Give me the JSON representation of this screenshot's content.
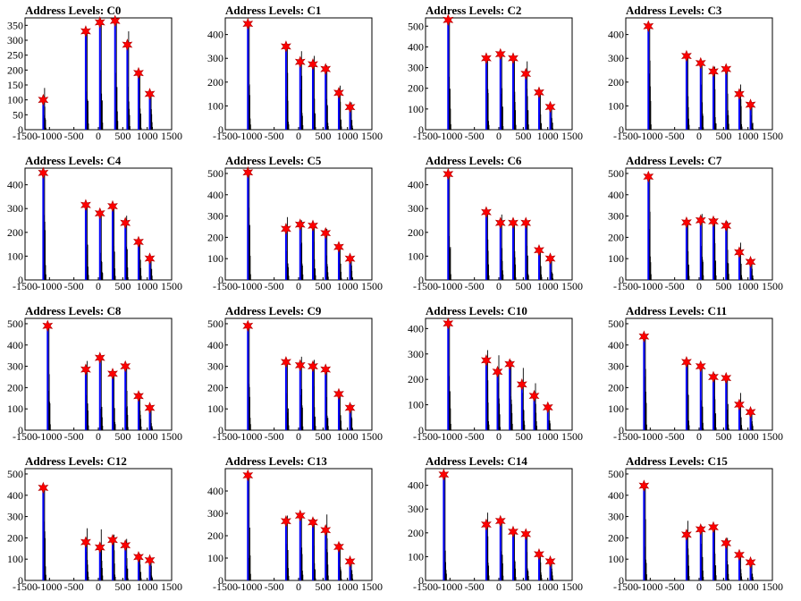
{
  "style": {
    "histogram_color": "#000000",
    "level_line_color": "#0000ff",
    "marker_color": "#ff0000",
    "marker_stroke": "#b00000"
  },
  "chart_data": [
    {
      "type": "bar",
      "title": "Address Levels: C0",
      "xlim": [
        -1500,
        1500
      ],
      "ylim": [
        0,
        375
      ],
      "yticks": [
        0,
        50,
        100,
        150,
        200,
        250,
        300,
        350
      ],
      "xticks": [
        -1500,
        -1000,
        -500,
        0,
        500,
        1000,
        1500
      ],
      "levels": [
        -1100,
        -230,
        60,
        370,
        620,
        850,
        1080
      ],
      "peaks": [
        100,
        330,
        360,
        365,
        285,
        190,
        120
      ],
      "hist_peaks": [
        140,
        330,
        360,
        365,
        330,
        190,
        120
      ]
    },
    {
      "type": "bar",
      "title": "Address Levels: C1",
      "xlim": [
        -1500,
        1500
      ],
      "ylim": [
        0,
        470
      ],
      "yticks": [
        0,
        100,
        200,
        300,
        400
      ],
      "xticks": [
        -1500,
        -1000,
        -500,
        0,
        500,
        1000,
        1500
      ],
      "levels": [
        -1010,
        -230,
        60,
        320,
        580,
        850,
        1080
      ],
      "peaks": [
        445,
        350,
        285,
        275,
        255,
        155,
        95
      ],
      "hist_peaks": [
        445,
        350,
        330,
        310,
        270,
        185,
        115
      ]
    },
    {
      "type": "bar",
      "title": "Address Levels: C2",
      "xlim": [
        -1500,
        1500
      ],
      "ylim": [
        0,
        540
      ],
      "yticks": [
        0,
        100,
        200,
        300,
        400,
        500
      ],
      "xticks": [
        -1500,
        -1000,
        -500,
        0,
        500,
        1000,
        1500
      ],
      "levels": [
        -1010,
        -230,
        60,
        320,
        580,
        850,
        1080
      ],
      "peaks": [
        530,
        345,
        365,
        345,
        270,
        180,
        110
      ],
      "hist_peaks": [
        530,
        345,
        365,
        345,
        330,
        180,
        110
      ]
    },
    {
      "type": "bar",
      "title": "Address Levels: C3",
      "xlim": [
        -1500,
        1500
      ],
      "ylim": [
        0,
        470
      ],
      "yticks": [
        0,
        100,
        200,
        300,
        400
      ],
      "xticks": [
        -1500,
        -1000,
        -500,
        0,
        500,
        1000,
        1500
      ],
      "levels": [
        -1010,
        -230,
        60,
        320,
        580,
        850,
        1080
      ],
      "peaks": [
        435,
        310,
        280,
        245,
        255,
        150,
        105
      ],
      "hist_peaks": [
        435,
        310,
        280,
        265,
        255,
        190,
        115
      ]
    },
    {
      "type": "bar",
      "title": "Address Levels: C4",
      "xlim": [
        -1500,
        1500
      ],
      "ylim": [
        0,
        470
      ],
      "yticks": [
        0,
        100,
        200,
        300,
        400
      ],
      "xticks": [
        -1500,
        -1000,
        -500,
        0,
        500,
        1000,
        1500
      ],
      "levels": [
        -1100,
        -230,
        60,
        320,
        580,
        850,
        1080
      ],
      "peaks": [
        450,
        315,
        280,
        310,
        240,
        160,
        90
      ],
      "hist_peaks": [
        450,
        315,
        290,
        310,
        270,
        170,
        95
      ]
    },
    {
      "type": "bar",
      "title": "Address Levels: C5",
      "xlim": [
        -1500,
        1500
      ],
      "ylim": [
        0,
        525
      ],
      "yticks": [
        0,
        100,
        200,
        300,
        400,
        500
      ],
      "xticks": [
        -1500,
        -1000,
        -500,
        0,
        500,
        1000,
        1500
      ],
      "levels": [
        -1010,
        -230,
        60,
        320,
        580,
        850,
        1080
      ],
      "peaks": [
        505,
        240,
        260,
        255,
        220,
        155,
        100
      ],
      "hist_peaks": [
        505,
        295,
        280,
        260,
        240,
        160,
        105
      ]
    },
    {
      "type": "bar",
      "title": "Address Levels: C6",
      "xlim": [
        -1500,
        1500
      ],
      "ylim": [
        0,
        470
      ],
      "yticks": [
        0,
        100,
        200,
        300,
        400
      ],
      "xticks": [
        -1500,
        -1000,
        -500,
        0,
        500,
        1000,
        1500
      ],
      "levels": [
        -1010,
        -230,
        60,
        320,
        580,
        850,
        1080
      ],
      "peaks": [
        445,
        285,
        240,
        240,
        240,
        125,
        90
      ],
      "hist_peaks": [
        445,
        285,
        275,
        250,
        240,
        125,
        90
      ]
    },
    {
      "type": "bar",
      "title": "Address Levels: C7",
      "xlim": [
        -1500,
        1500
      ],
      "ylim": [
        0,
        525
      ],
      "yticks": [
        0,
        100,
        200,
        300,
        400,
        500
      ],
      "xticks": [
        -1500,
        -1000,
        -500,
        0,
        500,
        1000,
        1500
      ],
      "levels": [
        -1010,
        -230,
        60,
        320,
        580,
        850,
        1080
      ],
      "peaks": [
        485,
        270,
        280,
        275,
        255,
        130,
        85
      ],
      "hist_peaks": [
        485,
        280,
        310,
        290,
        275,
        175,
        90
      ]
    },
    {
      "type": "bar",
      "title": "Address Levels: C8",
      "xlim": [
        -1500,
        1500
      ],
      "ylim": [
        0,
        525
      ],
      "yticks": [
        0,
        100,
        200,
        300,
        400,
        500
      ],
      "xticks": [
        -1500,
        -1000,
        -500,
        0,
        500,
        1000,
        1500
      ],
      "levels": [
        -1010,
        -230,
        60,
        320,
        580,
        850,
        1080
      ],
      "peaks": [
        490,
        285,
        340,
        265,
        300,
        160,
        105
      ],
      "hist_peaks": [
        490,
        325,
        340,
        275,
        300,
        175,
        110
      ]
    },
    {
      "type": "bar",
      "title": "Address Levels: C9",
      "xlim": [
        -1500,
        1500
      ],
      "ylim": [
        0,
        525
      ],
      "yticks": [
        0,
        100,
        200,
        300,
        400,
        500
      ],
      "xticks": [
        -1500,
        -1000,
        -500,
        0,
        500,
        1000,
        1500
      ],
      "levels": [
        -1010,
        -230,
        60,
        320,
        580,
        850,
        1080
      ],
      "peaks": [
        490,
        320,
        305,
        300,
        285,
        170,
        105
      ],
      "hist_peaks": [
        490,
        330,
        345,
        330,
        295,
        180,
        120
      ]
    },
    {
      "type": "bar",
      "title": "Address Levels: C10",
      "xlim": [
        -1500,
        1500
      ],
      "ylim": [
        0,
        440
      ],
      "yticks": [
        0,
        100,
        200,
        300,
        400
      ],
      "xticks": [
        -1500,
        -1000,
        -500,
        0,
        500,
        1000,
        1500
      ],
      "levels": [
        -1010,
        -230,
        0,
        250,
        500,
        750,
        1030
      ],
      "peaks": [
        420,
        275,
        230,
        260,
        180,
        135,
        90
      ],
      "hist_peaks": [
        420,
        315,
        295,
        275,
        245,
        185,
        100
      ]
    },
    {
      "type": "bar",
      "title": "Address Levels: C11",
      "xlim": [
        -1500,
        1500
      ],
      "ylim": [
        0,
        525
      ],
      "yticks": [
        0,
        100,
        200,
        300,
        400,
        500
      ],
      "xticks": [
        -1500,
        -1000,
        -500,
        0,
        500,
        1000,
        1500
      ],
      "levels": [
        -1100,
        -230,
        60,
        320,
        580,
        850,
        1080
      ],
      "peaks": [
        440,
        320,
        300,
        250,
        245,
        120,
        85
      ],
      "hist_peaks": [
        440,
        325,
        300,
        265,
        255,
        175,
        95
      ]
    },
    {
      "type": "bar",
      "title": "Address Levels: C12",
      "xlim": [
        -1500,
        1500
      ],
      "ylim": [
        0,
        525
      ],
      "yticks": [
        0,
        100,
        200,
        300,
        400,
        500
      ],
      "xticks": [
        -1500,
        -1000,
        -500,
        0,
        500,
        1000,
        1500
      ],
      "levels": [
        -1100,
        -230,
        60,
        320,
        580,
        850,
        1080
      ],
      "peaks": [
        435,
        180,
        155,
        190,
        165,
        110,
        95
      ],
      "hist_peaks": [
        435,
        245,
        240,
        215,
        195,
        125,
        105
      ]
    },
    {
      "type": "bar",
      "title": "Address Levels: C13",
      "xlim": [
        -1500,
        1500
      ],
      "ylim": [
        0,
        500
      ],
      "yticks": [
        0,
        100,
        200,
        300,
        400
      ],
      "xticks": [
        -1500,
        -1000,
        -500,
        0,
        500,
        1000,
        1500
      ],
      "levels": [
        -1010,
        -230,
        60,
        320,
        580,
        850,
        1080
      ],
      "peaks": [
        470,
        265,
        290,
        260,
        225,
        150,
        85
      ],
      "hist_peaks": [
        470,
        290,
        295,
        275,
        295,
        165,
        90
      ]
    },
    {
      "type": "bar",
      "title": "Address Levels: C14",
      "xlim": [
        -1500,
        1500
      ],
      "ylim": [
        0,
        470
      ],
      "yticks": [
        0,
        100,
        200,
        300,
        400
      ],
      "xticks": [
        -1500,
        -1000,
        -500,
        0,
        500,
        1000,
        1500
      ],
      "levels": [
        -1100,
        -230,
        60,
        320,
        580,
        850,
        1080
      ],
      "peaks": [
        445,
        235,
        250,
        205,
        195,
        110,
        80
      ],
      "hist_peaks": [
        445,
        285,
        260,
        215,
        200,
        120,
        85
      ]
    },
    {
      "type": "bar",
      "title": "Address Levels: C15",
      "xlim": [
        -1500,
        1500
      ],
      "ylim": [
        0,
        525
      ],
      "yticks": [
        0,
        100,
        200,
        300,
        400,
        500
      ],
      "xticks": [
        -1500,
        -1000,
        -500,
        0,
        500,
        1000,
        1500
      ],
      "levels": [
        -1100,
        -230,
        60,
        320,
        580,
        850,
        1080
      ],
      "peaks": [
        445,
        215,
        240,
        250,
        175,
        120,
        85
      ],
      "hist_peaks": [
        445,
        280,
        255,
        250,
        200,
        130,
        90
      ]
    }
  ]
}
